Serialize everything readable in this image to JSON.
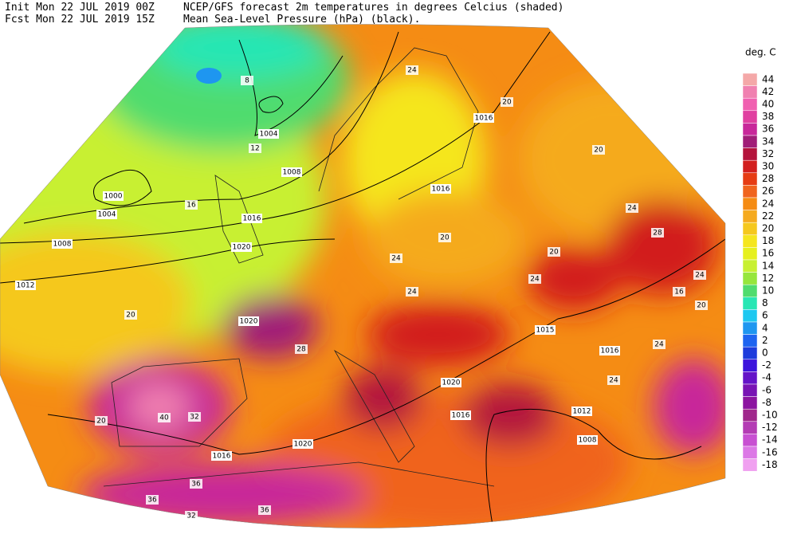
{
  "header": {
    "init": "Init  Mon 22 JUL 2019 00Z",
    "fcst": "Fcst Mon 22 JUL 2019 15Z",
    "title": "NCEP/GFS forecast 2m temperatures in degrees Celcius (shaded)",
    "subtitle": "Mean Sea-Level Pressure (hPa) (black)."
  },
  "legend": {
    "title": "deg. C",
    "levels": [
      44,
      42,
      40,
      38,
      36,
      34,
      32,
      30,
      28,
      26,
      24,
      22,
      20,
      18,
      16,
      14,
      12,
      10,
      8,
      6,
      4,
      2,
      0,
      -2,
      -4,
      -6,
      -8,
      -10,
      -12,
      -14,
      -16,
      -18
    ],
    "colors": [
      "#f4a8a8",
      "#f080b0",
      "#f060b0",
      "#e040a0",
      "#c8289a",
      "#a01e78",
      "#b4143c",
      "#d21e1e",
      "#e63c14",
      "#f0641e",
      "#f58c14",
      "#f5aa1e",
      "#f5c81e",
      "#f5e61e",
      "#e6f01e",
      "#c8f032",
      "#96e63c",
      "#50dc6e",
      "#28e6b4",
      "#1ec8f0",
      "#1e96f0",
      "#1e64f0",
      "#1e3cdc",
      "#3c14dc",
      "#6414c8",
      "#7814b4",
      "#8c14a0",
      "#a0288c",
      "#b43cb4",
      "#c850d2",
      "#dc78e6",
      "#f0a0f0"
    ]
  },
  "isobars": {
    "labels": [
      1004,
      1008,
      1000,
      1004,
      1008,
      1012,
      1020,
      1016,
      1020,
      1016,
      1016,
      1015,
      1016,
      1020,
      1016,
      1012,
      1008,
      1020,
      1016
    ]
  },
  "temperature_labels": [
    24,
    20,
    20,
    24,
    28,
    24,
    20,
    16,
    24,
    20,
    24,
    20,
    24,
    20,
    16,
    12,
    8,
    20,
    40,
    32,
    36,
    36,
    32,
    36,
    28,
    24,
    24
  ]
}
